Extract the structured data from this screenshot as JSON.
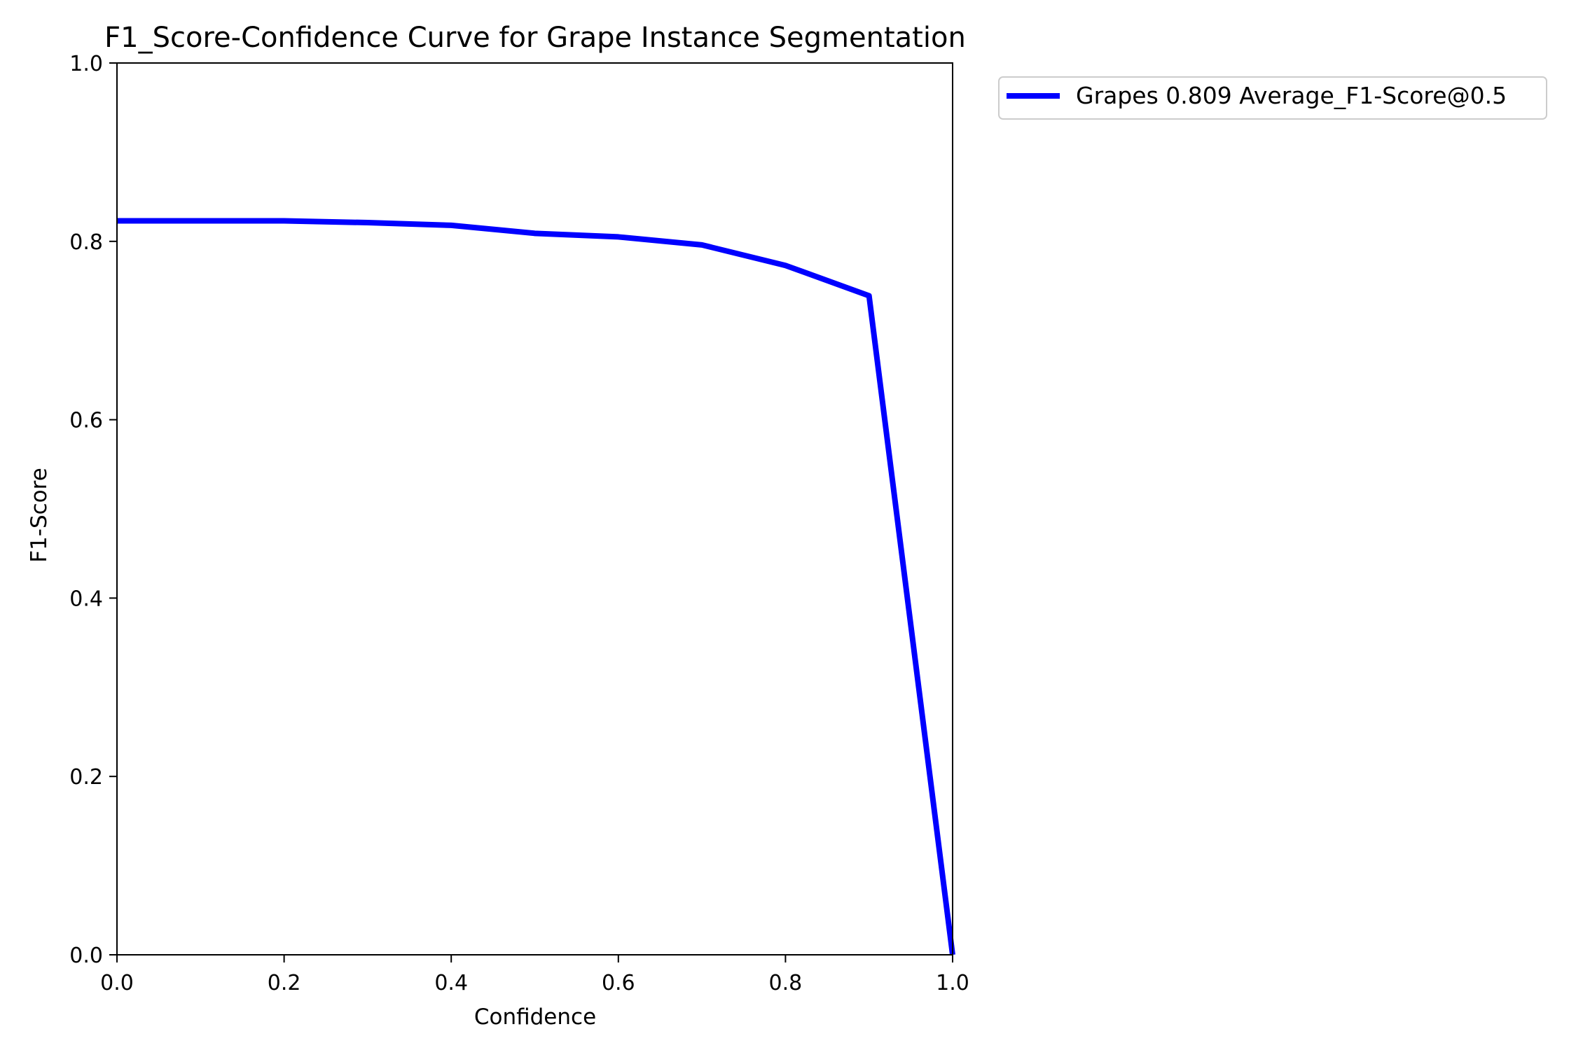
{
  "chart_data": {
    "type": "line",
    "title": "F1_Score-Confidence Curve for Grape Instance Segmentation",
    "xlabel": "Confidence",
    "ylabel": "F1-Score",
    "xlim": [
      0.0,
      1.0
    ],
    "ylim": [
      0.0,
      1.0
    ],
    "xticks": [
      "0.0",
      "0.2",
      "0.4",
      "0.6",
      "0.8",
      "1.0"
    ],
    "yticks": [
      "0.0",
      "0.2",
      "0.4",
      "0.6",
      "0.8",
      "1.0"
    ],
    "grid": false,
    "legend_position": "outside-top-right",
    "series": [
      {
        "name": "Grapes 0.809 Average_F1-Score@0.5",
        "color": "#0000ff",
        "x": [
          0.0,
          0.1,
          0.2,
          0.3,
          0.4,
          0.5,
          0.6,
          0.7,
          0.8,
          0.9,
          1.0
        ],
        "y": [
          0.823,
          0.823,
          0.823,
          0.821,
          0.818,
          0.809,
          0.805,
          0.796,
          0.773,
          0.739,
          0.0
        ]
      }
    ]
  }
}
